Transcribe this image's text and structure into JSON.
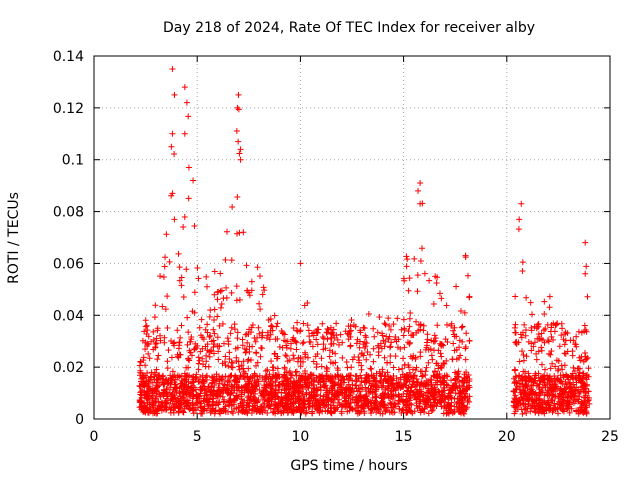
{
  "chart_data": {
    "type": "scatter",
    "title": "Day 218 of 2024, Rate Of TEC Index for receiver alby",
    "xlabel": "GPS time / hours",
    "ylabel": "ROTI / TECUs",
    "xlim": [
      0,
      25
    ],
    "ylim": [
      0,
      0.14
    ],
    "x_ticks": [
      0,
      5,
      10,
      15,
      20,
      25
    ],
    "y_ticks": [
      0,
      0.02,
      0.04,
      0.06,
      0.08,
      0.1,
      0.12,
      0.14
    ],
    "y_tick_labels": [
      "0",
      "0.02",
      "0.04",
      "0.06",
      "0.08",
      "0.1",
      "0.12",
      "0.14"
    ],
    "grid": true,
    "marker": "+",
    "series": [
      {
        "name": "ROTI",
        "color": "#ff0000",
        "segments": [
          {
            "x_range": [
              2.2,
              18.2
            ],
            "envelope": [
              [
                2.2,
                0.02
              ],
              [
                2.5,
                0.038
              ],
              [
                3.0,
                0.045
              ],
              [
                3.3,
                0.06
              ],
              [
                3.5,
                0.075
              ],
              [
                3.7,
                0.105
              ],
              [
                3.8,
                0.135
              ],
              [
                4.0,
                0.07
              ],
              [
                4.2,
                0.06
              ],
              [
                4.5,
                0.128
              ],
              [
                4.7,
                0.095
              ],
              [
                5.0,
                0.06
              ],
              [
                5.3,
                0.055
              ],
              [
                5.6,
                0.06
              ],
              [
                6.0,
                0.055
              ],
              [
                6.4,
                0.07
              ],
              [
                6.8,
                0.09
              ],
              [
                7.0,
                0.125
              ],
              [
                7.2,
                0.075
              ],
              [
                7.5,
                0.05
              ],
              [
                8.0,
                0.06
              ],
              [
                8.5,
                0.045
              ],
              [
                9.0,
                0.035
              ],
              [
                9.5,
                0.03
              ],
              [
                10.0,
                0.055
              ],
              [
                10.5,
                0.048
              ],
              [
                11.0,
                0.04
              ],
              [
                11.5,
                0.035
              ],
              [
                12.0,
                0.042
              ],
              [
                12.5,
                0.038
              ],
              [
                13.0,
                0.035
              ],
              [
                13.5,
                0.045
              ],
              [
                14.0,
                0.04
              ],
              [
                14.5,
                0.05
              ],
              [
                15.0,
                0.06
              ],
              [
                15.5,
                0.07
              ],
              [
                15.8,
                0.09
              ],
              [
                16.2,
                0.065
              ],
              [
                16.5,
                0.06
              ],
              [
                17.0,
                0.055
              ],
              [
                17.5,
                0.05
              ],
              [
                18.0,
                0.063
              ],
              [
                18.2,
                0.05
              ]
            ]
          },
          {
            "x_range": [
              20.3,
              24.0
            ],
            "envelope": [
              [
                20.3,
                0.03
              ],
              [
                20.5,
                0.07
              ],
              [
                20.7,
                0.083
              ],
              [
                21.0,
                0.055
              ],
              [
                21.3,
                0.045
              ],
              [
                21.6,
                0.04
              ],
              [
                22.0,
                0.05
              ],
              [
                22.4,
                0.04
              ],
              [
                22.8,
                0.035
              ],
              [
                23.2,
                0.03
              ],
              [
                23.6,
                0.035
              ],
              [
                23.8,
                0.068
              ],
              [
                24.0,
                0.03
              ]
            ]
          }
        ],
        "notable_points": [
          [
            3.8,
            0.135
          ],
          [
            3.9,
            0.125
          ],
          [
            4.4,
            0.128
          ],
          [
            4.5,
            0.122
          ],
          [
            4.4,
            0.11
          ],
          [
            3.75,
            0.105
          ],
          [
            3.8,
            0.11
          ],
          [
            7.0,
            0.125
          ],
          [
            6.95,
            0.12
          ],
          [
            7.1,
            0.104
          ],
          [
            7.1,
            0.1
          ],
          [
            4.6,
            0.097
          ],
          [
            4.8,
            0.092
          ],
          [
            15.8,
            0.091
          ],
          [
            15.7,
            0.088
          ],
          [
            20.7,
            0.083
          ],
          [
            20.6,
            0.077
          ],
          [
            15.8,
            0.083
          ],
          [
            3.8,
            0.087
          ],
          [
            23.8,
            0.068
          ],
          [
            23.8,
            0.056
          ],
          [
            10.0,
            0.06
          ],
          [
            18.0,
            0.063
          ]
        ]
      }
    ]
  }
}
